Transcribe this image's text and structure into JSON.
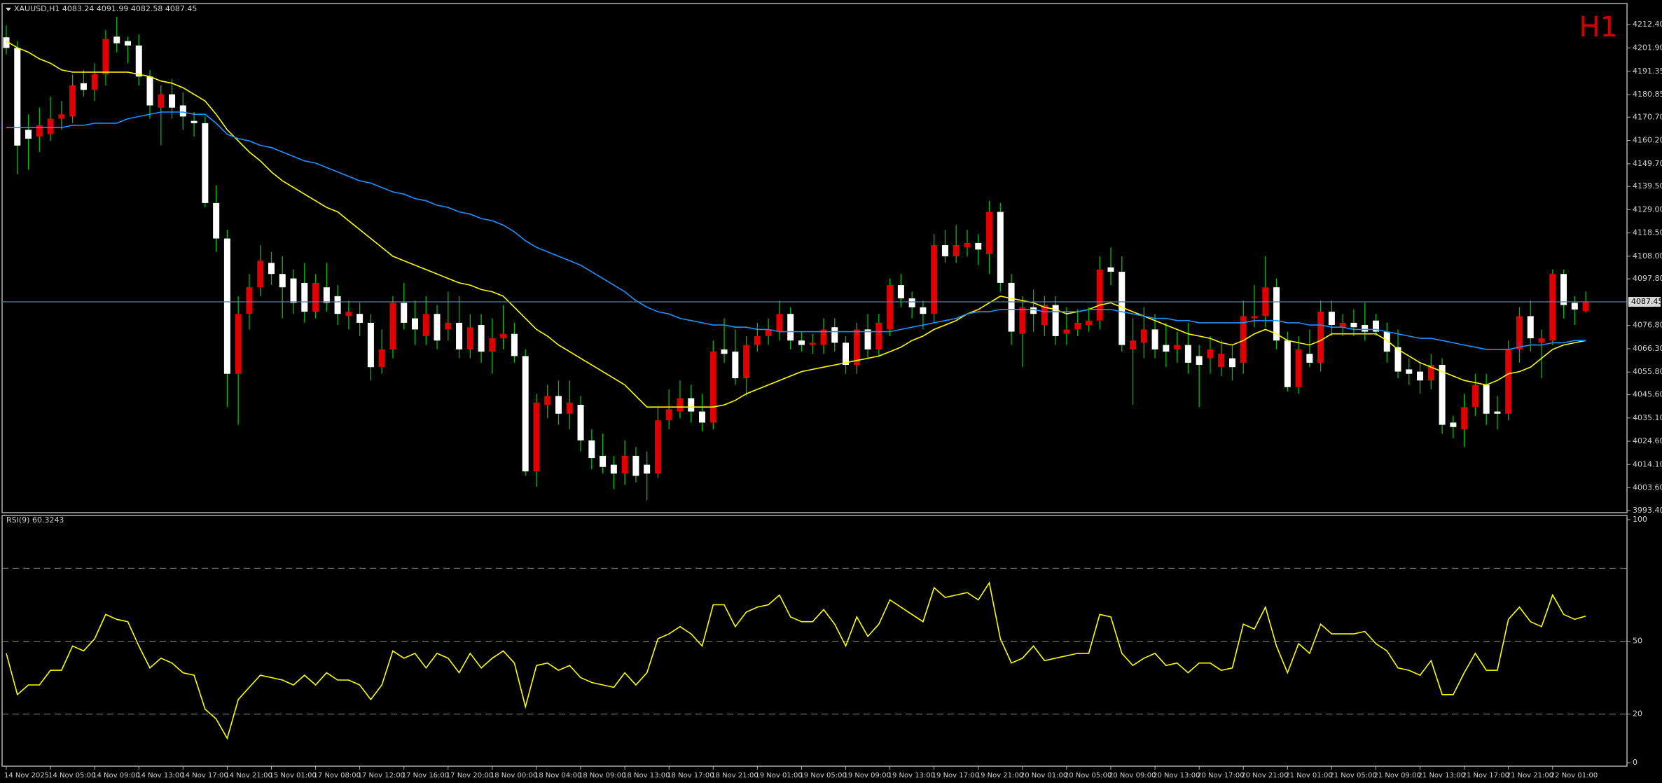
{
  "chart_data": [
    {
      "type": "candlestick",
      "title": "XAUUSD,H1  4083.24 4091.99 4082.58 4087.45",
      "period": "H1",
      "categories": [
        "14 Nov 2025",
        null,
        null,
        null,
        "14 Nov 05:00",
        null,
        null,
        null,
        "14 Nov 09:00",
        null,
        null,
        null,
        "14 Nov 13:00",
        null,
        null,
        null,
        "14 Nov 17:00",
        null,
        null,
        null,
        "14 Nov 21:00",
        null,
        null,
        null,
        "15 Nov 01:00",
        null,
        null,
        null,
        "17 Nov 08:00",
        null,
        null,
        null,
        "17 Nov 12:00",
        null,
        null,
        null,
        "17 Nov 16:00",
        null,
        null,
        null,
        "17 Nov 20:00",
        null,
        null,
        null,
        "18 Nov 00:00",
        null,
        null,
        null,
        "18 Nov 04:00",
        null,
        null,
        null,
        "18 Nov 09:00",
        null,
        null,
        null,
        "18 Nov 13:00",
        null,
        null,
        null,
        "18 Nov 17:00",
        null,
        null,
        null,
        "18 Nov 21:00",
        null,
        null,
        null,
        "19 Nov 01:00",
        null,
        null,
        null,
        "19 Nov 05:00",
        null,
        null,
        null,
        "19 Nov 09:00",
        null,
        null,
        null,
        "19 Nov 13:00",
        null,
        null,
        null,
        "19 Nov 17:00",
        null,
        null,
        null,
        "19 Nov 21:00",
        null,
        null,
        null,
        "20 Nov 01:00",
        null,
        null,
        null,
        "20 Nov 05:00",
        null,
        null,
        null,
        "20 Nov 09:00",
        null,
        null,
        null,
        "20 Nov 13:00",
        null,
        null,
        null,
        "20 Nov 17:00",
        null,
        null,
        null,
        "20 Nov 21:00",
        null,
        null,
        null,
        "21 Nov 01:00",
        null,
        null,
        null,
        "21 Nov 05:00",
        null,
        null,
        null,
        "21 Nov 09:00",
        null,
        null,
        null,
        "21 Nov 13:00",
        null,
        null,
        null,
        "21 Nov 17:00",
        null,
        null,
        null,
        "21 Nov 21:00",
        null,
        null,
        null,
        "22 Nov 01:00",
        null,
        null,
        null
      ],
      "open": [
        4206.7,
        4201.9,
        4165,
        4162,
        4163,
        4170,
        4171,
        4186,
        4183,
        4190,
        4207,
        4205,
        4203,
        4189,
        4175,
        4181,
        4176,
        4169,
        4168,
        4132,
        4116,
        4055,
        4082,
        4094,
        4105,
        4100,
        4098,
        4096,
        4083,
        4094,
        4090,
        4081,
        4082,
        4078,
        4058,
        4066,
        4087,
        4080,
        4072,
        4082,
        4075,
        4078,
        4066,
        4077,
        4065,
        4071,
        4073,
        4063,
        4011,
        4041,
        4045,
        4037,
        4041,
        4025,
        4018,
        4014,
        4010,
        4018,
        4014,
        4010,
        4034,
        4038,
        4044,
        4038,
        4033,
        4066,
        4065,
        4053,
        4068,
        4072,
        4074,
        4082,
        4070,
        4068,
        4068,
        4076,
        4069,
        4059,
        4075,
        4066,
        4075,
        4095,
        4089,
        4085,
        4082,
        4113,
        4108,
        4112,
        4114,
        4109,
        4128,
        4096,
        4073,
        4085,
        4077,
        4086,
        4073,
        4075,
        4077,
        4079,
        4103,
        4101,
        4066,
        4069,
        4075,
        4068,
        4066,
        4068,
        4063,
        4062,
        4058,
        4062,
        4060,
        4080,
        4081,
        4094,
        4070,
        4049,
        4064,
        4060,
        4083,
        4076,
        4078,
        4077,
        4079,
        4074,
        4067,
        4057,
        4056,
        4052,
        4059,
        4033,
        4030,
        4040,
        4050,
        4038,
        4037,
        4066,
        4081,
        4069,
        4070,
        4100,
        4087,
        4083.24
      ],
      "high": [
        4212,
        4205,
        4172,
        4175,
        4180,
        4178,
        4190,
        4192,
        4195,
        4210,
        4216,
        4207,
        4208,
        4192,
        4185,
        4188,
        4182,
        4173,
        4171,
        4140,
        4120,
        4090,
        4100,
        4113,
        4110,
        4108,
        4102,
        4105,
        4100,
        4105,
        4095,
        4088,
        4087,
        4082,
        4075,
        4090,
        4096,
        4088,
        4090,
        4086,
        4092,
        4090,
        4082,
        4082,
        4080,
        4086,
        4078,
        4066,
        4046,
        4050,
        4052,
        4052,
        4045,
        4030,
        4028,
        4018,
        4025,
        4022,
        4020,
        4040,
        4048,
        4052,
        4050,
        4046,
        4070,
        4080,
        4075,
        4072,
        4078,
        4080,
        4088,
        4085,
        4074,
        4073,
        4080,
        4080,
        4072,
        4078,
        4082,
        4082,
        4098,
        4100,
        4092,
        4088,
        4118,
        4120,
        4122,
        4120,
        4118,
        4133,
        4132,
        4100,
        4090,
        4093,
        4090,
        4090,
        4085,
        4084,
        4085,
        4108,
        4112,
        4108,
        4080,
        4085,
        4082,
        4078,
        4074,
        4078,
        4068,
        4072,
        4070,
        4068,
        4088,
        4095,
        4108,
        4098,
        4074,
        4072,
        4075,
        4088,
        4088,
        4082,
        4084,
        4087,
        4082,
        4078,
        4075,
        4062,
        4060,
        4064,
        4062,
        4036,
        4046,
        4055,
        4055,
        4045,
        4070,
        4085,
        4088,
        4075,
        4102,
        4102,
        4090,
        4091.99
      ],
      "low": [
        4199,
        4145,
        4147,
        4155,
        4160,
        4165,
        4168,
        4180,
        4178,
        4185,
        4200,
        4195,
        4185,
        4170,
        4158,
        4170,
        4165,
        4162,
        4130,
        4110,
        4040,
        4032,
        4075,
        4090,
        4095,
        4080,
        4082,
        4078,
        4080,
        4083,
        4077,
        4075,
        4072,
        4052,
        4055,
        4062,
        4075,
        4068,
        4068,
        4066,
        4070,
        4062,
        4062,
        4060,
        4055,
        4066,
        4060,
        4009,
        4004,
        4035,
        4032,
        4030,
        4020,
        4012,
        4010,
        4003,
        4005,
        4006,
        3998,
        4008,
        4030,
        4035,
        4033,
        4029,
        4030,
        4060,
        4050,
        4045,
        4065,
        4068,
        4070,
        4066,
        4065,
        4064,
        4064,
        4065,
        4055,
        4055,
        4062,
        4063,
        4072,
        4085,
        4080,
        4075,
        4078,
        4105,
        4105,
        4108,
        4104,
        4100,
        4092,
        4068,
        4058,
        4074,
        4072,
        4068,
        4068,
        4072,
        4074,
        4075,
        4095,
        4065,
        4041,
        4062,
        4062,
        4058,
        4060,
        4055,
        4040,
        4055,
        4054,
        4052,
        4055,
        4076,
        4076,
        4066,
        4047,
        4046,
        4058,
        4056,
        4072,
        4072,
        4072,
        4070,
        4072,
        4060,
        4053,
        4050,
        4046,
        4048,
        4028,
        4026,
        4022,
        4036,
        4032,
        4030,
        4034,
        4060,
        4065,
        4053,
        4068,
        4080,
        4077,
        4082.58
      ],
      "close": [
        4201.9,
        4157.9,
        4161,
        4167,
        4170,
        4172,
        4185,
        4183,
        4190,
        4206,
        4204,
        4203,
        4189,
        4176,
        4181,
        4175,
        4171,
        4168,
        4132,
        4116,
        4055,
        4082,
        4094,
        4106,
        4100,
        4094,
        4087,
        4083,
        4096,
        4087,
        4082,
        4083,
        4078,
        4058,
        4066,
        4087,
        4078,
        4075,
        4082,
        4070,
        4078,
        4066,
        4076,
        4065,
        4071,
        4073,
        4063,
        4011,
        4042,
        4045,
        4037,
        4042,
        4025,
        4017,
        4013,
        4010,
        4018,
        4009,
        4010,
        4034,
        4039,
        4044,
        4038,
        4033,
        4065,
        4064,
        4053,
        4068,
        4072,
        4075,
        4082,
        4070,
        4068,
        4069,
        4075,
        4069,
        4059,
        4075,
        4066,
        4078,
        4095,
        4089,
        4085,
        4082,
        4113,
        4108,
        4113,
        4114,
        4111,
        4128,
        4096,
        4074,
        4085,
        4082,
        4086,
        4072,
        4075,
        4078,
        4079,
        4102,
        4101,
        4068,
        4070,
        4075,
        4066,
        4065,
        4068,
        4060,
        4059,
        4066,
        4064,
        4058,
        4081,
        4081,
        4094,
        4070,
        4049,
        4066,
        4060,
        4083,
        4077,
        4078,
        4076,
        4074,
        4074,
        4065,
        4056,
        4055,
        4052,
        4059,
        4032,
        4031,
        4040,
        4050,
        4037,
        4037,
        4066,
        4081,
        4071,
        4071,
        4100,
        4086,
        4084,
        4087.45
      ],
      "bull_color": "#e00000",
      "bear_color": "#ffffff",
      "wick_color": "#00c000",
      "series": [
        {
          "color": "#ffff00",
          "values": [
            4205,
            4202,
            4200,
            4197,
            4195,
            4192,
            4191,
            4191,
            4191,
            4191,
            4191,
            4191,
            4190,
            4189,
            4187,
            4186,
            4184,
            4181,
            4178,
            4172,
            4165,
            4160,
            4155,
            4151,
            4146,
            4142,
            4139,
            4136,
            4133,
            4130,
            4128,
            4124,
            4120,
            4116,
            4112,
            4108,
            4106,
            4104,
            4102,
            4100,
            4098,
            4096,
            4095,
            4093,
            4092,
            4090,
            4085,
            4080,
            4075,
            4072,
            4068,
            4065,
            4062,
            4059,
            4056,
            4053,
            4050,
            4045,
            4040,
            4040,
            4040,
            4040,
            4040,
            4040,
            4040,
            4041,
            4043,
            4046,
            4048,
            4050,
            4052,
            4054,
            4056,
            4057,
            4058,
            4059,
            4060,
            4061,
            4062,
            4063,
            4065,
            4067,
            4070,
            4072,
            4075,
            4077,
            4079,
            4082,
            4084,
            4087,
            4090,
            4089,
            4088,
            4087,
            4085,
            4084,
            4082,
            4083,
            4084,
            4086,
            4087,
            4085,
            4083,
            4081,
            4079,
            4077,
            4075,
            4073,
            4072,
            4071,
            4069,
            4068,
            4070,
            4073,
            4075,
            4073,
            4070,
            4069,
            4068,
            4070,
            4073,
            4073,
            4073,
            4073,
            4073,
            4070,
            4066,
            4063,
            4060,
            4058,
            4056,
            4054,
            4052,
            4051,
            4050,
            4052,
            4055,
            4056,
            4058,
            4062,
            4066,
            4068,
            4069,
            4070
          ]
        },
        {
          "color": "#1e90ff",
          "values": [
            4166,
            4166,
            4166,
            4166,
            4166,
            4166,
            4167,
            4167,
            4168,
            4168,
            4168,
            4170,
            4171,
            4172,
            4173,
            4173,
            4173,
            4172,
            4172,
            4168,
            4163,
            4161,
            4160,
            4158,
            4157,
            4155,
            4153,
            4151,
            4150,
            4148,
            4146,
            4144,
            4142,
            4141,
            4139,
            4137,
            4136,
            4134,
            4133,
            4131,
            4130,
            4128,
            4127,
            4125,
            4124,
            4122,
            4119,
            4115,
            4112,
            4110,
            4108,
            4106,
            4104,
            4101,
            4098,
            4095,
            4092,
            4088,
            4085,
            4083,
            4082,
            4080,
            4079,
            4078,
            4077,
            4077,
            4076,
            4076,
            4075,
            4075,
            4074,
            4074,
            4074,
            4074,
            4074,
            4074,
            4074,
            4074,
            4074,
            4074,
            4074,
            4075,
            4076,
            4077,
            4078,
            4079,
            4080,
            4082,
            4083,
            4083,
            4084,
            4084,
            4084,
            4084,
            4083,
            4083,
            4083,
            4083,
            4084,
            4084,
            4084,
            4083,
            4082,
            4081,
            4080,
            4080,
            4079,
            4079,
            4078,
            4078,
            4078,
            4078,
            4078,
            4079,
            4079,
            4079,
            4078,
            4078,
            4077,
            4077,
            4076,
            4076,
            4075,
            4075,
            4075,
            4074,
            4073,
            4072,
            4071,
            4071,
            4070,
            4069,
            4068,
            4067,
            4066,
            4066,
            4066,
            4067,
            4068,
            4068,
            4069,
            4069,
            4070,
            4070
          ]
        }
      ],
      "ylim": [
        3992.4,
        4221.0
      ],
      "yticks": [
        {
          "value": 4212.4,
          "label": "4212.40"
        },
        {
          "value": 4201.9,
          "label": "4201.90"
        },
        4191.35,
        4180.85,
        {
          "value": 4170.7,
          "label": "4170.70"
        },
        {
          "value": 4160.2,
          "label": "4160.20"
        },
        {
          "value": 4149.7,
          "label": "4149.70"
        },
        {
          "value": 4139.5,
          "label": "4139.50"
        },
        {
          "value": 4129,
          "label": "4129.00"
        },
        {
          "value": 4118.5,
          "label": "4118.50"
        },
        {
          "value": 4108,
          "label": "4108.00"
        },
        {
          "value": 4097.8,
          "label": "4097.80"
        },
        {
          "value": 4076.8,
          "label": "4076.80"
        },
        {
          "value": 4066.3,
          "label": "4066.30"
        },
        {
          "value": 4055.8,
          "label": "4055.80"
        },
        {
          "value": 4045.6,
          "label": "4045.60"
        },
        {
          "value": 4035.1,
          "label": "4035.10"
        },
        {
          "value": 4024.6,
          "label": "4024.60"
        },
        {
          "value": 4014.1,
          "label": "4014.10"
        },
        {
          "value": 4003.6,
          "label": "4003.60"
        },
        {
          "value": 3993.4,
          "label": "3993.40"
        }
      ],
      "current_price_line": true,
      "current_price_color": "#5a7ca0"
    },
    {
      "type": "line",
      "title": "RSI(9) 60.3243",
      "values": [
        45,
        28,
        32,
        32,
        38,
        38,
        48,
        46,
        51,
        61,
        59,
        58,
        48,
        39,
        43,
        41,
        37,
        36,
        22,
        18,
        10,
        26,
        31,
        36,
        35,
        34,
        32,
        36,
        32,
        37,
        34,
        34,
        32,
        26,
        32,
        46,
        43,
        45,
        39,
        45,
        43,
        37,
        45,
        39,
        43,
        46,
        41,
        23,
        40,
        41,
        38,
        40,
        35,
        33,
        32,
        31,
        37,
        32,
        37,
        51,
        53,
        56,
        53,
        48,
        65,
        65,
        56,
        62,
        64,
        65,
        69,
        60,
        58,
        58,
        63,
        57,
        48,
        60,
        52,
        57,
        67,
        64,
        61,
        58,
        72,
        68,
        69,
        70,
        67,
        74,
        51,
        41,
        43,
        48,
        42,
        43,
        44,
        45,
        45,
        61,
        60,
        45,
        40,
        43,
        45,
        40,
        41,
        37,
        41,
        41,
        38,
        39,
        57,
        55,
        64,
        48,
        37,
        49,
        45,
        57,
        53,
        53,
        53,
        54,
        49,
        46,
        39,
        38,
        36,
        42,
        28,
        28,
        37,
        45,
        38,
        38,
        59,
        64,
        58,
        56,
        69,
        61,
        59,
        60.3243
      ],
      "color": "#ffff00",
      "ylim": [
        0,
        100
      ],
      "yticks": [
        0,
        20,
        50,
        100
      ],
      "levels": [
        20,
        50,
        80
      ],
      "level_color": "#8a8a8a"
    }
  ]
}
